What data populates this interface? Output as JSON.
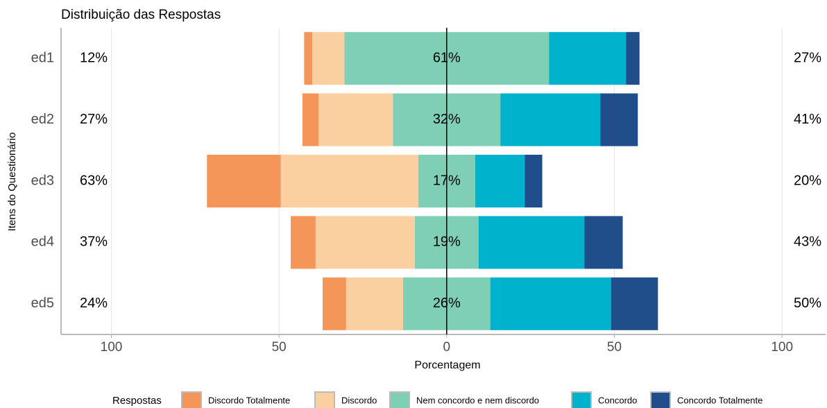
{
  "chart_data": {
    "type": "diverging_bar",
    "title": "Distribuição das Respostas",
    "x_label": "Porcentagem",
    "y_label": "Itens do Questionário",
    "legend_title": "Respostas",
    "categories": [
      "ed1",
      "ed2",
      "ed3",
      "ed4",
      "ed5"
    ],
    "series": [
      {
        "name": "Discordo Totalmente",
        "color": "#f4955a",
        "side": "left",
        "values": [
          2.4,
          4.8,
          22,
          7.4,
          7
        ]
      },
      {
        "name": "Discordo",
        "color": "#fad0a1",
        "side": "left",
        "values": [
          9.6,
          22.2,
          41,
          29.6,
          17
        ]
      },
      {
        "name": "Nem concordo e nem discordo",
        "color": "#7fcfb7",
        "side": "center",
        "values": [
          61,
          32,
          17,
          19,
          26
        ]
      },
      {
        "name": "Concordo",
        "color": "#00b2cc",
        "side": "right",
        "values": [
          23,
          29.8,
          14.8,
          31.6,
          36
        ]
      },
      {
        "name": "Concordo Totalmente",
        "color": "#1f4e8a",
        "side": "right",
        "values": [
          4,
          11.2,
          5.2,
          11.4,
          14
        ]
      }
    ],
    "left_labels": [
      "12%",
      "27%",
      "63%",
      "37%",
      "24%"
    ],
    "center_labels": [
      "61%",
      "32%",
      "17%",
      "19%",
      "26%"
    ],
    "right_labels": [
      "27%",
      "41%",
      "20%",
      "43%",
      "50%"
    ],
    "xlim": [
      -115,
      113
    ],
    "xticks": [
      {
        "value": -100,
        "label": "100"
      },
      {
        "value": -50,
        "label": "50"
      },
      0,
      50,
      {
        "value": 100,
        "label": "100"
      }
    ],
    "grid": true
  }
}
